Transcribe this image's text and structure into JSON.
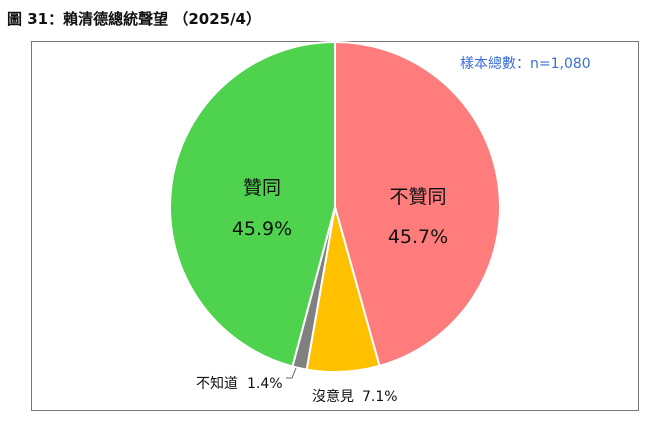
{
  "figure": {
    "title": "圖 31：賴清德總統聲望 （2025/4）"
  },
  "chart_data": {
    "type": "pie",
    "sample_note": "樣本總數：n=1,080",
    "start_angle_deg": 0,
    "direction": "clockwise",
    "slices": [
      {
        "label": "不贊同",
        "value_text": "45.7%",
        "value": 45.7,
        "color": "#ff7c7c"
      },
      {
        "label": "沒意見",
        "value_text": "7.1%",
        "value": 7.1,
        "color": "#ffc000"
      },
      {
        "label": "不知道",
        "value_text": "1.4%",
        "value": 1.4,
        "color": "#808080"
      },
      {
        "label": "贊同",
        "value_text": "45.9%",
        "value": 45.9,
        "color": "#4fd34f"
      }
    ]
  }
}
